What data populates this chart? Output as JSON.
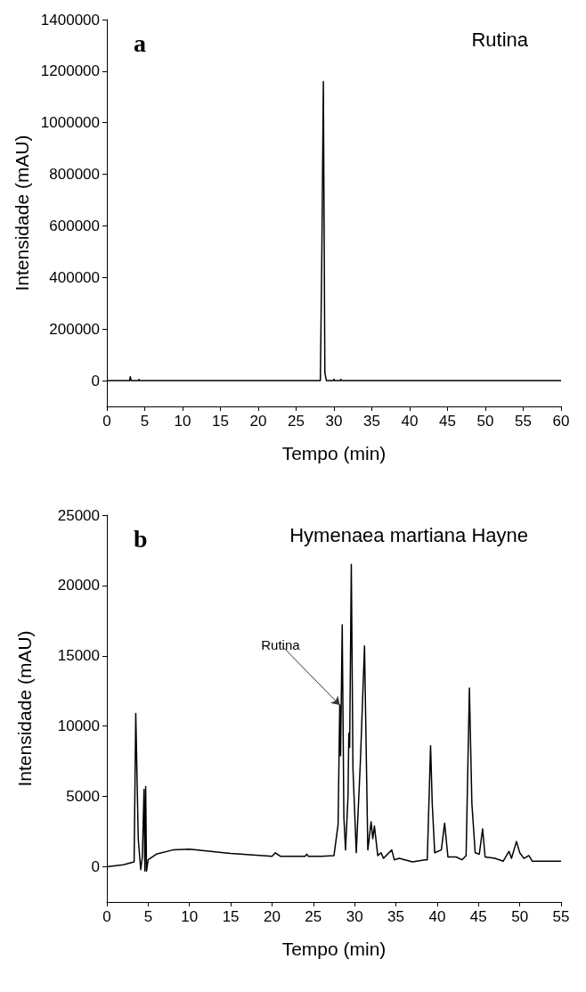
{
  "chart_data": [
    {
      "type": "line",
      "title": "Rutina",
      "xlabel": "Tempo (min)",
      "ylabel": "Intensidade (mAU)",
      "annotations": [
        "a"
      ],
      "x": [
        0,
        3,
        3.05,
        3.1,
        3.2,
        4.2,
        4.25,
        4.3,
        28.2,
        28.4,
        28.6,
        28.8,
        29,
        29.9,
        30,
        30.1,
        30.8,
        30.9,
        31,
        60
      ],
      "series": [
        {
          "color": "#000000",
          "values": [
            0,
            0,
            8000,
            15000,
            0,
            0,
            5000,
            0,
            0,
            500000,
            1160000,
            30000,
            0,
            0,
            5000,
            0,
            0,
            5000,
            0,
            0
          ]
        }
      ],
      "xlim": [
        0,
        60
      ],
      "xticks": [
        0,
        5,
        10,
        15,
        20,
        25,
        30,
        35,
        40,
        45,
        50,
        55,
        60
      ],
      "ylim": [
        -100000,
        1400000
      ],
      "yticks": [
        0,
        200000,
        400000,
        600000,
        800000,
        1000000,
        1200000,
        1400000
      ],
      "grid": false,
      "marker": "none",
      "line_style": "solid"
    },
    {
      "type": "line",
      "title": "Hymenaea martiana Hayne",
      "xlabel": "Tempo (min)",
      "ylabel": "Intensidade (mAU)",
      "annotations": [
        "b",
        {
          "text": "Rutina",
          "x": 28.2,
          "y": 11500
        }
      ],
      "x": [
        0,
        2,
        3.3,
        3.5,
        3.8,
        4.1,
        4.3,
        4.5,
        4.6,
        4.7,
        4.8,
        5,
        6,
        8,
        10,
        15,
        20,
        20.4,
        21,
        24,
        24.2,
        24.4,
        26,
        27.5,
        28,
        28.2,
        28.3,
        28.5,
        28.7,
        28.9,
        29.2,
        29.3,
        29.4,
        29.6,
        29.8,
        30.2,
        30.7,
        31.2,
        31.6,
        32,
        32.2,
        32.4,
        32.8,
        33.2,
        33.5,
        34.5,
        34.8,
        35.4,
        37,
        38.5,
        38.8,
        39.2,
        39.4,
        39.7,
        40.5,
        40.9,
        41.3,
        42.3,
        43,
        43.5,
        43.9,
        44.2,
        44.6,
        45.1,
        45.5,
        45.8,
        47,
        48,
        48.7,
        49,
        49.6,
        50,
        50.5,
        51.1,
        51.5,
        53,
        55
      ],
      "series": [
        {
          "color": "#000000",
          "values": [
            0,
            150,
            350,
            10900,
            2000,
            -200,
            700,
            5500,
            -300,
            5700,
            -300,
            500,
            900,
            1200,
            1250,
            950,
            750,
            1000,
            750,
            750,
            900,
            750,
            750,
            800,
            3000,
            11500,
            7900,
            17200,
            3500,
            1200,
            5000,
            9500,
            8500,
            21500,
            7000,
            1000,
            7500,
            15700,
            1200,
            3200,
            2000,
            2900,
            800,
            1000,
            600,
            1200,
            500,
            600,
            350,
            500,
            500,
            8600,
            4500,
            1000,
            1200,
            3100,
            700,
            700,
            500,
            800,
            12700,
            4500,
            1000,
            900,
            2700,
            700,
            600,
            400,
            1100,
            600,
            1800,
            1000,
            600,
            800,
            400,
            400,
            400
          ]
        }
      ],
      "xlim": [
        0,
        55
      ],
      "xticks": [
        0,
        5,
        10,
        15,
        20,
        25,
        30,
        35,
        40,
        45,
        50,
        55
      ],
      "ylim": [
        -2500,
        25000
      ],
      "yticks": [
        0,
        5000,
        10000,
        15000,
        20000,
        25000
      ],
      "grid": false,
      "marker": "none",
      "line_style": "solid"
    }
  ]
}
